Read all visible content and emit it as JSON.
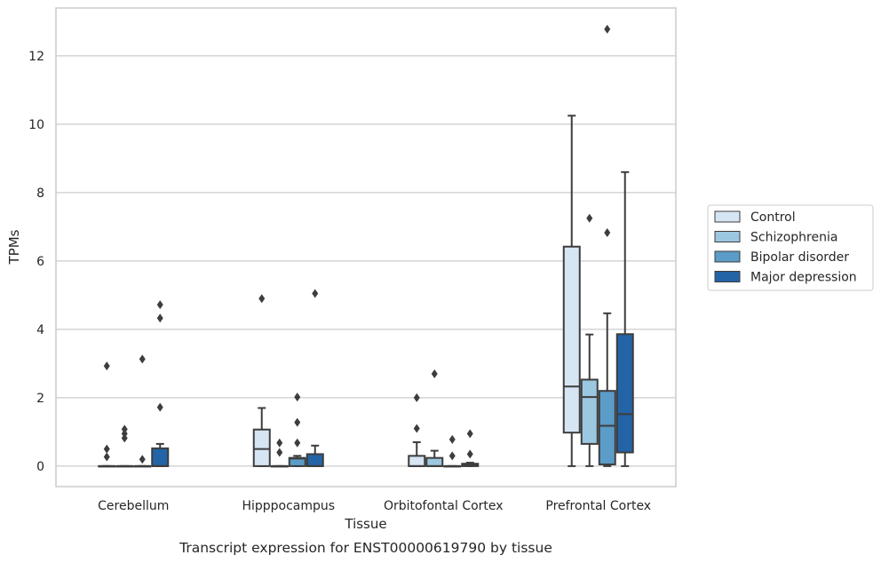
{
  "chart_data": {
    "type": "box",
    "title": "Transcript expression for ENST00000619790 by tissue",
    "xlabel": "Tissue",
    "ylabel": "TPMs",
    "ylim": [
      -0.6,
      13.4
    ],
    "yticks": [
      0,
      2,
      4,
      6,
      8,
      10,
      12
    ],
    "ytick_labels": [
      "0",
      "2",
      "4",
      "6",
      "8",
      "10",
      "12"
    ],
    "grid": "horizontal",
    "legend_position": "right",
    "categories": [
      "Cerebellum",
      "Hipppocampus",
      "Orbitofontal Cortex",
      "Prefrontal Cortex"
    ],
    "series": [
      {
        "name": "Control",
        "color": "#d6e5f3",
        "boxes": [
          {
            "whislo": 0,
            "q1": 0,
            "med": 0,
            "q3": 0,
            "whishi": 0,
            "fliers": [
              2.93,
              0.5,
              0.27
            ]
          },
          {
            "whislo": 0,
            "q1": 0,
            "med": 0.5,
            "q3": 1.07,
            "whishi": 1.7,
            "fliers": [
              4.9
            ]
          },
          {
            "whislo": 0,
            "q1": 0,
            "med": 0,
            "q3": 0.3,
            "whishi": 0.7,
            "fliers": [
              2.0,
              1.1
            ]
          },
          {
            "whislo": 0,
            "q1": 0.98,
            "med": 2.33,
            "q3": 6.42,
            "whishi": 10.25,
            "fliers": []
          }
        ]
      },
      {
        "name": "Schizophrenia",
        "color": "#9cc7e0",
        "boxes": [
          {
            "whislo": 0,
            "q1": 0,
            "med": 0,
            "q3": 0,
            "whishi": 0,
            "fliers": [
              1.08,
              0.95,
              0.82
            ]
          },
          {
            "whislo": 0,
            "q1": 0,
            "med": 0,
            "q3": 0,
            "whishi": 0,
            "fliers": [
              0.68,
              0.4
            ]
          },
          {
            "whislo": 0,
            "q1": 0,
            "med": 0,
            "q3": 0.24,
            "whishi": 0.45,
            "fliers": [
              2.7
            ]
          },
          {
            "whislo": 0,
            "q1": 0.65,
            "med": 2.02,
            "q3": 2.53,
            "whishi": 3.85,
            "fliers": [
              7.25
            ]
          }
        ]
      },
      {
        "name": "Bipolar disorder",
        "color": "#5b9cc8",
        "boxes": [
          {
            "whislo": 0,
            "q1": 0,
            "med": 0,
            "q3": 0,
            "whishi": 0,
            "fliers": [
              3.13,
              0.2
            ]
          },
          {
            "whislo": 0,
            "q1": 0,
            "med": 0.22,
            "q3": 0.24,
            "whishi": 0.3,
            "fliers": [
              2.02,
              1.28,
              0.68
            ]
          },
          {
            "whislo": 0,
            "q1": 0,
            "med": 0,
            "q3": 0,
            "whishi": 0,
            "fliers": [
              0.78,
              0.3
            ]
          },
          {
            "whislo": 0,
            "q1": 0.05,
            "med": 1.18,
            "q3": 2.2,
            "whishi": 4.47,
            "fliers": [
              12.78,
              6.83
            ]
          }
        ]
      },
      {
        "name": "Major depression",
        "color": "#2364a7",
        "boxes": [
          {
            "whislo": 0,
            "q1": 0,
            "med": 0,
            "q3": 0.52,
            "whishi": 0.65,
            "fliers": [
              4.72,
              4.33,
              1.72
            ]
          },
          {
            "whislo": 0,
            "q1": 0,
            "med": 0,
            "q3": 0.35,
            "whishi": 0.6,
            "fliers": [
              5.05
            ]
          },
          {
            "whislo": 0,
            "q1": 0,
            "med": 0.02,
            "q3": 0.07,
            "whishi": 0.1,
            "fliers": [
              0.95,
              0.35
            ]
          },
          {
            "whislo": 0,
            "q1": 0.4,
            "med": 1.52,
            "q3": 3.86,
            "whishi": 8.6,
            "fliers": []
          }
        ]
      }
    ]
  }
}
